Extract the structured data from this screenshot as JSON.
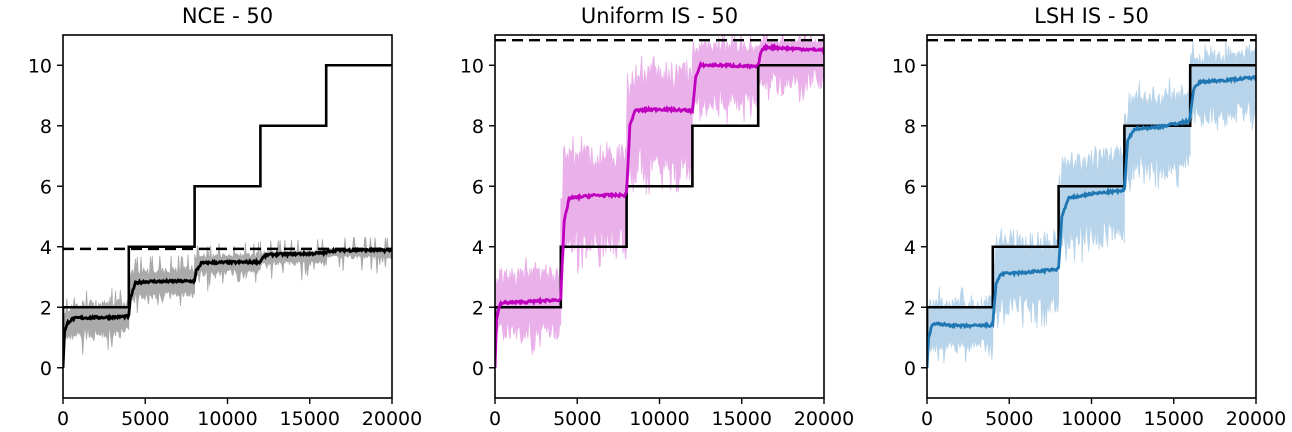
{
  "chart_data": [
    {
      "type": "line",
      "title": "NCE - 50",
      "xlabel": "",
      "ylabel": "",
      "xlim": [
        0,
        20000
      ],
      "ylim": [
        -1,
        11
      ],
      "xticks": [
        0,
        5000,
        10000,
        15000,
        20000
      ],
      "yticks": [
        0,
        2,
        4,
        6,
        8,
        10
      ],
      "grid": false,
      "legend": null,
      "band_color": "#aaaaaa",
      "mean_color": "#000000",
      "dashed_reference": 3.93,
      "target_steps": {
        "x": [
          0,
          4000,
          8000,
          12000,
          16000,
          20000
        ],
        "y": [
          2,
          4,
          6,
          8,
          10,
          10
        ]
      },
      "series": [
        {
          "name": "mean",
          "x": [
            0,
            100,
            300,
            600,
            1000,
            2000,
            3000,
            4000,
            4100,
            4400,
            5000,
            6000,
            7000,
            8000,
            8100,
            8400,
            9000,
            10000,
            11000,
            12000,
            12100,
            12400,
            13000,
            14000,
            15000,
            16000,
            16200,
            16600,
            18000,
            20000
          ],
          "y": [
            0,
            1.2,
            1.5,
            1.62,
            1.65,
            1.66,
            1.67,
            1.7,
            2.3,
            2.8,
            2.85,
            2.85,
            2.86,
            2.86,
            3.2,
            3.45,
            3.48,
            3.48,
            3.49,
            3.5,
            3.62,
            3.73,
            3.75,
            3.76,
            3.77,
            3.8,
            3.86,
            3.88,
            3.89,
            3.88
          ]
        },
        {
          "name": "band_upper",
          "x": [
            0,
            4000,
            4000,
            8000,
            8000,
            12000,
            12000,
            16000,
            16000,
            20000
          ],
          "y": [
            2.2,
            2.3,
            3.3,
            3.4,
            3.75,
            3.8,
            3.85,
            3.9,
            3.95,
            3.95
          ]
        },
        {
          "name": "band_lower",
          "x": [
            0,
            4000,
            4000,
            8000,
            8000,
            12000,
            12000,
            16000,
            16000,
            20000
          ],
          "y": [
            0.9,
            1.0,
            2.2,
            2.3,
            3.0,
            3.1,
            3.4,
            3.35,
            3.6,
            3.6
          ]
        }
      ]
    },
    {
      "type": "line",
      "title": "Uniform IS - 50",
      "xlabel": "",
      "ylabel": "",
      "xlim": [
        0,
        20000
      ],
      "ylim": [
        -1,
        11
      ],
      "xticks": [
        0,
        5000,
        10000,
        15000,
        20000
      ],
      "yticks": [
        0,
        2,
        4,
        6,
        8,
        10
      ],
      "grid": false,
      "legend": null,
      "band_color": "#e9b0e9",
      "mean_color": "#bf00bf",
      "dashed_reference": 10.83,
      "target_steps": {
        "x": [
          0,
          4000,
          8000,
          12000,
          16000,
          20000
        ],
        "y": [
          2,
          4,
          6,
          8,
          10,
          10
        ]
      },
      "series": [
        {
          "name": "mean",
          "x": [
            0,
            100,
            300,
            600,
            2000,
            3900,
            4000,
            4200,
            4500,
            6000,
            7900,
            8000,
            8200,
            8500,
            10000,
            11900,
            12000,
            12200,
            12500,
            14000,
            15900,
            16000,
            16200,
            16500,
            18000,
            20000
          ],
          "y": [
            0,
            1.6,
            2.1,
            2.15,
            2.18,
            2.25,
            2.3,
            4.8,
            5.6,
            5.7,
            5.7,
            5.8,
            8.0,
            8.5,
            8.55,
            8.5,
            8.5,
            9.6,
            10.0,
            10.0,
            9.95,
            10.0,
            10.5,
            10.6,
            10.55,
            10.5
          ]
        },
        {
          "name": "band_upper",
          "x": [
            0,
            4000,
            4000,
            8000,
            8000,
            12000,
            12000,
            16000,
            16000,
            20000
          ],
          "y": [
            3.3,
            3.4,
            7.3,
            7.6,
            9.9,
            10.2,
            10.8,
            10.8,
            10.85,
            10.85
          ]
        },
        {
          "name": "band_lower",
          "x": [
            0,
            4000,
            4000,
            8000,
            8000,
            12000,
            12000,
            16000,
            16000,
            20000
          ],
          "y": [
            0.9,
            0.9,
            3.6,
            3.6,
            6.0,
            6.3,
            8.4,
            8.6,
            9.3,
            9.2
          ]
        }
      ]
    },
    {
      "type": "line",
      "title": "LSH IS - 50",
      "xlabel": "",
      "ylabel": "",
      "xlim": [
        0,
        20000
      ],
      "ylim": [
        -1,
        11
      ],
      "xticks": [
        0,
        5000,
        10000,
        15000,
        20000
      ],
      "yticks": [
        0,
        2,
        4,
        6,
        8,
        10
      ],
      "grid": false,
      "legend": null,
      "band_color": "#b8d4ea",
      "mean_color": "#1f77b4",
      "dashed_reference": 10.83,
      "target_steps": {
        "x": [
          0,
          4000,
          8000,
          12000,
          16000,
          20000
        ],
        "y": [
          2,
          4,
          6,
          8,
          10,
          10
        ]
      },
      "series": [
        {
          "name": "mean",
          "x": [
            0,
            100,
            300,
            600,
            2000,
            3900,
            4000,
            4200,
            4500,
            6000,
            7900,
            8000,
            8200,
            8600,
            10000,
            11900,
            12000,
            12200,
            12600,
            14000,
            15900,
            16000,
            16200,
            16600,
            18000,
            20000
          ],
          "y": [
            0,
            1.0,
            1.4,
            1.45,
            1.38,
            1.4,
            1.45,
            2.8,
            3.1,
            3.15,
            3.25,
            3.3,
            5.0,
            5.6,
            5.75,
            5.85,
            5.9,
            7.5,
            7.9,
            7.95,
            8.15,
            8.3,
            9.2,
            9.45,
            9.5,
            9.6
          ]
        },
        {
          "name": "band_upper",
          "x": [
            0,
            4000,
            4000,
            8000,
            8000,
            12000,
            12000,
            16000,
            16000,
            20000
          ],
          "y": [
            2.3,
            2.4,
            4.4,
            4.6,
            7.0,
            7.4,
            9.1,
            9.4,
            10.5,
            10.6
          ]
        },
        {
          "name": "band_lower",
          "x": [
            0,
            4000,
            4000,
            8000,
            8000,
            12000,
            12000,
            16000,
            16000,
            20000
          ],
          "y": [
            0.5,
            0.6,
            1.8,
            1.8,
            3.9,
            4.0,
            6.2,
            6.3,
            8.0,
            8.1
          ]
        }
      ]
    }
  ]
}
